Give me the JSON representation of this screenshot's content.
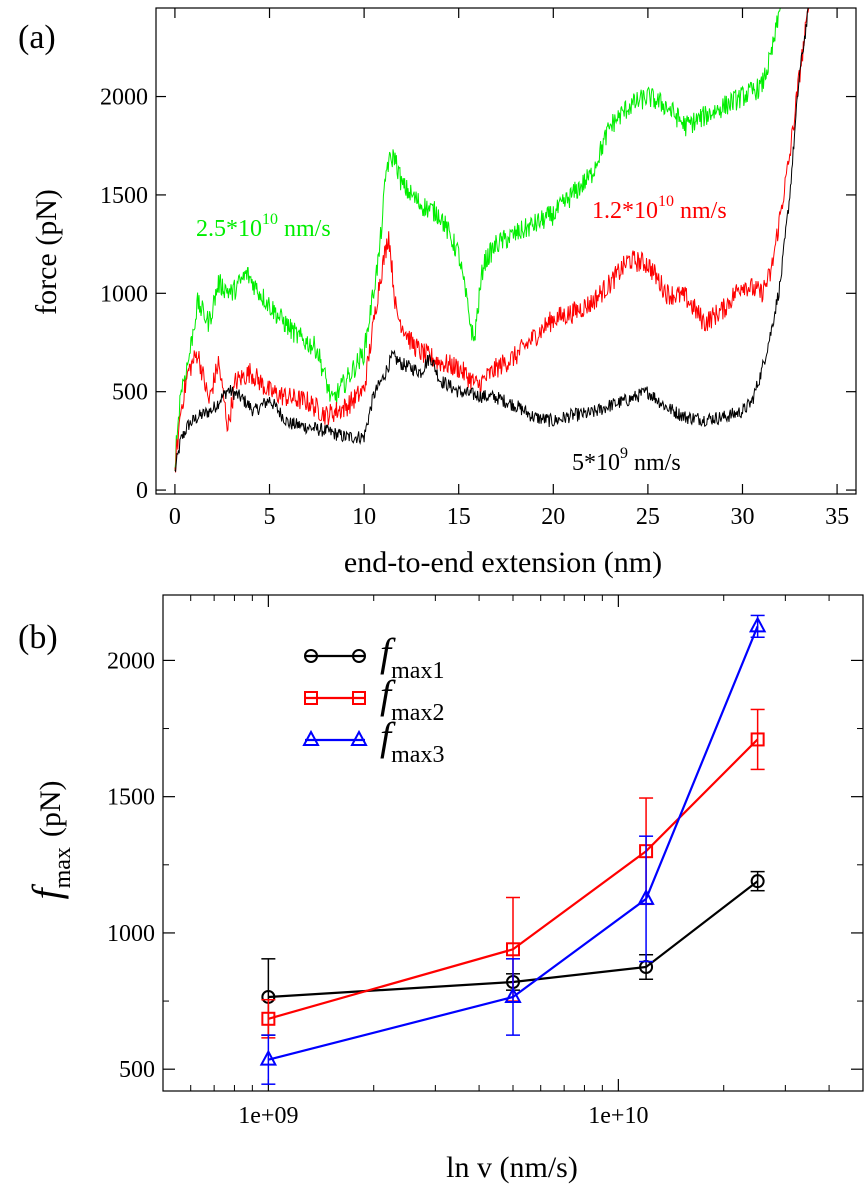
{
  "chart_data": [
    {
      "panel_label": "(a)",
      "type": "line",
      "xlabel": "end-to-end extension (nm)",
      "ylabel": "force (pN)",
      "xlim": [
        -1,
        36
      ],
      "ylim": [
        -20,
        2450
      ],
      "xticks": [
        0,
        5,
        10,
        15,
        20,
        25,
        30,
        35
      ],
      "yticks": [
        0,
        500,
        1000,
        1500,
        2000
      ],
      "series": [
        {
          "name": "5*10^9 nm/s",
          "label_text": "5*10",
          "label_exp": "9",
          "label_unit": " nm/s",
          "color": "#000000",
          "x": [
            0,
            0.3,
            0.7,
            1.2,
            2,
            2.8,
            3.5,
            4.2,
            5,
            6,
            7,
            8,
            9,
            10,
            10.5,
            11,
            11.5,
            12,
            13,
            13.5,
            14,
            15,
            16,
            17,
            18,
            19,
            20,
            21,
            22,
            23,
            24,
            25,
            26,
            27,
            28,
            29,
            30,
            30.5,
            31,
            31.5,
            32,
            32.5,
            33,
            33.5
          ],
          "y": [
            90,
            250,
            330,
            370,
            410,
            510,
            470,
            400,
            460,
            340,
            320,
            300,
            270,
            270,
            480,
            570,
            680,
            640,
            600,
            680,
            560,
            500,
            480,
            470,
            430,
            370,
            350,
            380,
            390,
            430,
            460,
            500,
            420,
            370,
            360,
            370,
            400,
            450,
            600,
            800,
            1050,
            1500,
            2100,
            2450
          ]
        },
        {
          "name": "1.2*10^10 nm/s",
          "label_text": "1.2*10",
          "label_exp": "10",
          "label_unit": " nm/s",
          "color": "#ff0000",
          "x": [
            0,
            0.3,
            0.7,
            1.2,
            1.8,
            2.3,
            2.8,
            3.2,
            4,
            5,
            6,
            7,
            8,
            9,
            10,
            10.8,
            11.3,
            11.7,
            12.5,
            13,
            14,
            15,
            16,
            17,
            18,
            19,
            20,
            21,
            22,
            23,
            24,
            25,
            26,
            27,
            28,
            29,
            30,
            31,
            31.5,
            32,
            32.5,
            33,
            33.5
          ],
          "y": [
            100,
            400,
            600,
            700,
            450,
            650,
            320,
            550,
            600,
            500,
            470,
            450,
            380,
            420,
            510,
            1050,
            1300,
            900,
            750,
            700,
            650,
            620,
            530,
            620,
            680,
            780,
            870,
            900,
            950,
            1050,
            1170,
            1150,
            1000,
            980,
            850,
            920,
            1050,
            1000,
            1100,
            1400,
            1700,
            2100,
            2450
          ]
        },
        {
          "name": "2.5*10^10 nm/s",
          "label_text": "2.5*10",
          "label_exp": "10",
          "label_unit": " nm/s",
          "color": "#00ee00",
          "x": [
            0,
            0.3,
            0.7,
            1.2,
            1.8,
            2.3,
            3,
            3.8,
            4.5,
            5.5,
            6.5,
            7.5,
            8.3,
            9,
            10,
            10.8,
            11.2,
            11.6,
            12,
            13,
            14,
            15,
            15.8,
            16.3,
            17,
            18,
            19,
            20,
            21,
            22,
            23,
            24,
            25,
            26,
            27,
            28,
            29,
            30,
            31,
            31.5,
            32
          ],
          "y": [
            150,
            500,
            650,
            950,
            850,
            1050,
            1000,
            1100,
            1000,
            880,
            780,
            720,
            450,
            550,
            700,
            1200,
            1650,
            1700,
            1550,
            1450,
            1400,
            1200,
            750,
            1150,
            1250,
            1300,
            1350,
            1400,
            1500,
            1600,
            1850,
            1950,
            2000,
            1950,
            1850,
            1900,
            1950,
            2000,
            2050,
            2200,
            2450
          ]
        }
      ]
    },
    {
      "panel_label": "(b)",
      "type": "line",
      "xlabel": "ln v (nm/s)",
      "ylabel_main": "f",
      "ylabel_sub": "max",
      "ylabel_unit": "(pN)",
      "x_scale": "log",
      "xlim": [
        500000000,
        50000000000
      ],
      "ylim": [
        420,
        2240
      ],
      "xtick_labels": [
        "1e+09",
        "1e+10"
      ],
      "xticks": [
        1000000000,
        10000000000
      ],
      "yticks": [
        500,
        1000,
        1500,
        2000
      ],
      "legend_position": "top-left",
      "x": [
        1000000000,
        5000000000,
        12000000000,
        25000000000
      ],
      "series": [
        {
          "name": "f max1",
          "label_main": "f",
          "label_sub": "max1",
          "color": "#000000",
          "marker": "circle",
          "values": [
            765,
            820,
            875,
            1190
          ],
          "errors": [
            140,
            30,
            45,
            35
          ]
        },
        {
          "name": "f max2",
          "label_main": "f",
          "label_sub": "max2",
          "color": "#ff0000",
          "marker": "square",
          "values": [
            685,
            940,
            1300,
            1710
          ],
          "errors": [
            70,
            190,
            195,
            110
          ]
        },
        {
          "name": "f max3",
          "label_main": "f",
          "label_sub": "max3",
          "color": "#0000ff",
          "marker": "triangle",
          "values": [
            535,
            765,
            1125,
            2125
          ],
          "errors": [
            90,
            140,
            230,
            40
          ]
        }
      ]
    }
  ]
}
